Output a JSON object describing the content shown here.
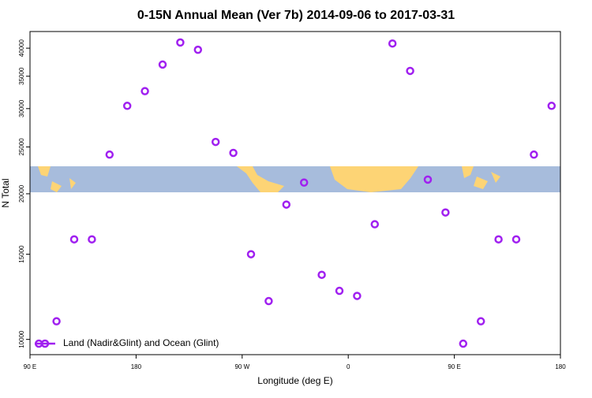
{
  "chart_data": {
    "type": "scatter",
    "title": "0-15N Annual Mean (Ver 7b)   2014-09-06 to 2017-03-31",
    "x_label": "Longitude (deg E)",
    "y_label": "N Total",
    "xlim": [
      90,
      540
    ],
    "xticks": [
      {
        "value": 90,
        "label": "90 E"
      },
      {
        "value": 180,
        "label": "180"
      },
      {
        "value": 270,
        "label": "90 W"
      },
      {
        "value": 360,
        "label": "0"
      },
      {
        "value": 450,
        "label": "90 E"
      },
      {
        "value": 540,
        "label": "180"
      }
    ],
    "ylim": [
      9300,
      43300
    ],
    "yticks": [
      10000,
      15000,
      20000,
      25000,
      30000,
      35000,
      40000
    ],
    "y_log": true,
    "legend_position": "bottomleft",
    "series": [
      {
        "name": "Land (Nadir&Glint) and Ocean (Glint)",
        "color": "#a020f0",
        "x": [
          97.5,
          112.5,
          127.5,
          142.5,
          157.5,
          172.5,
          187.5,
          202.5,
          217.5,
          232.5,
          247.5,
          262.5,
          277.5,
          292.5,
          307.5,
          322.5,
          337.5,
          352.5,
          367.5,
          382.5,
          397.5,
          412.5,
          427.5,
          442.5,
          457.5,
          472.5,
          487.5,
          502.5,
          517.5,
          532.5
        ],
        "values": [
          9800,
          10900,
          16100,
          16100,
          24100,
          30400,
          32600,
          37000,
          41100,
          39700,
          25600,
          24300,
          15000,
          12000,
          19000,
          21100,
          13600,
          12600,
          12300,
          17300,
          40900,
          35900,
          21400,
          18300,
          9800,
          10900,
          16100,
          16100,
          24100,
          30400
        ]
      }
    ]
  }
}
